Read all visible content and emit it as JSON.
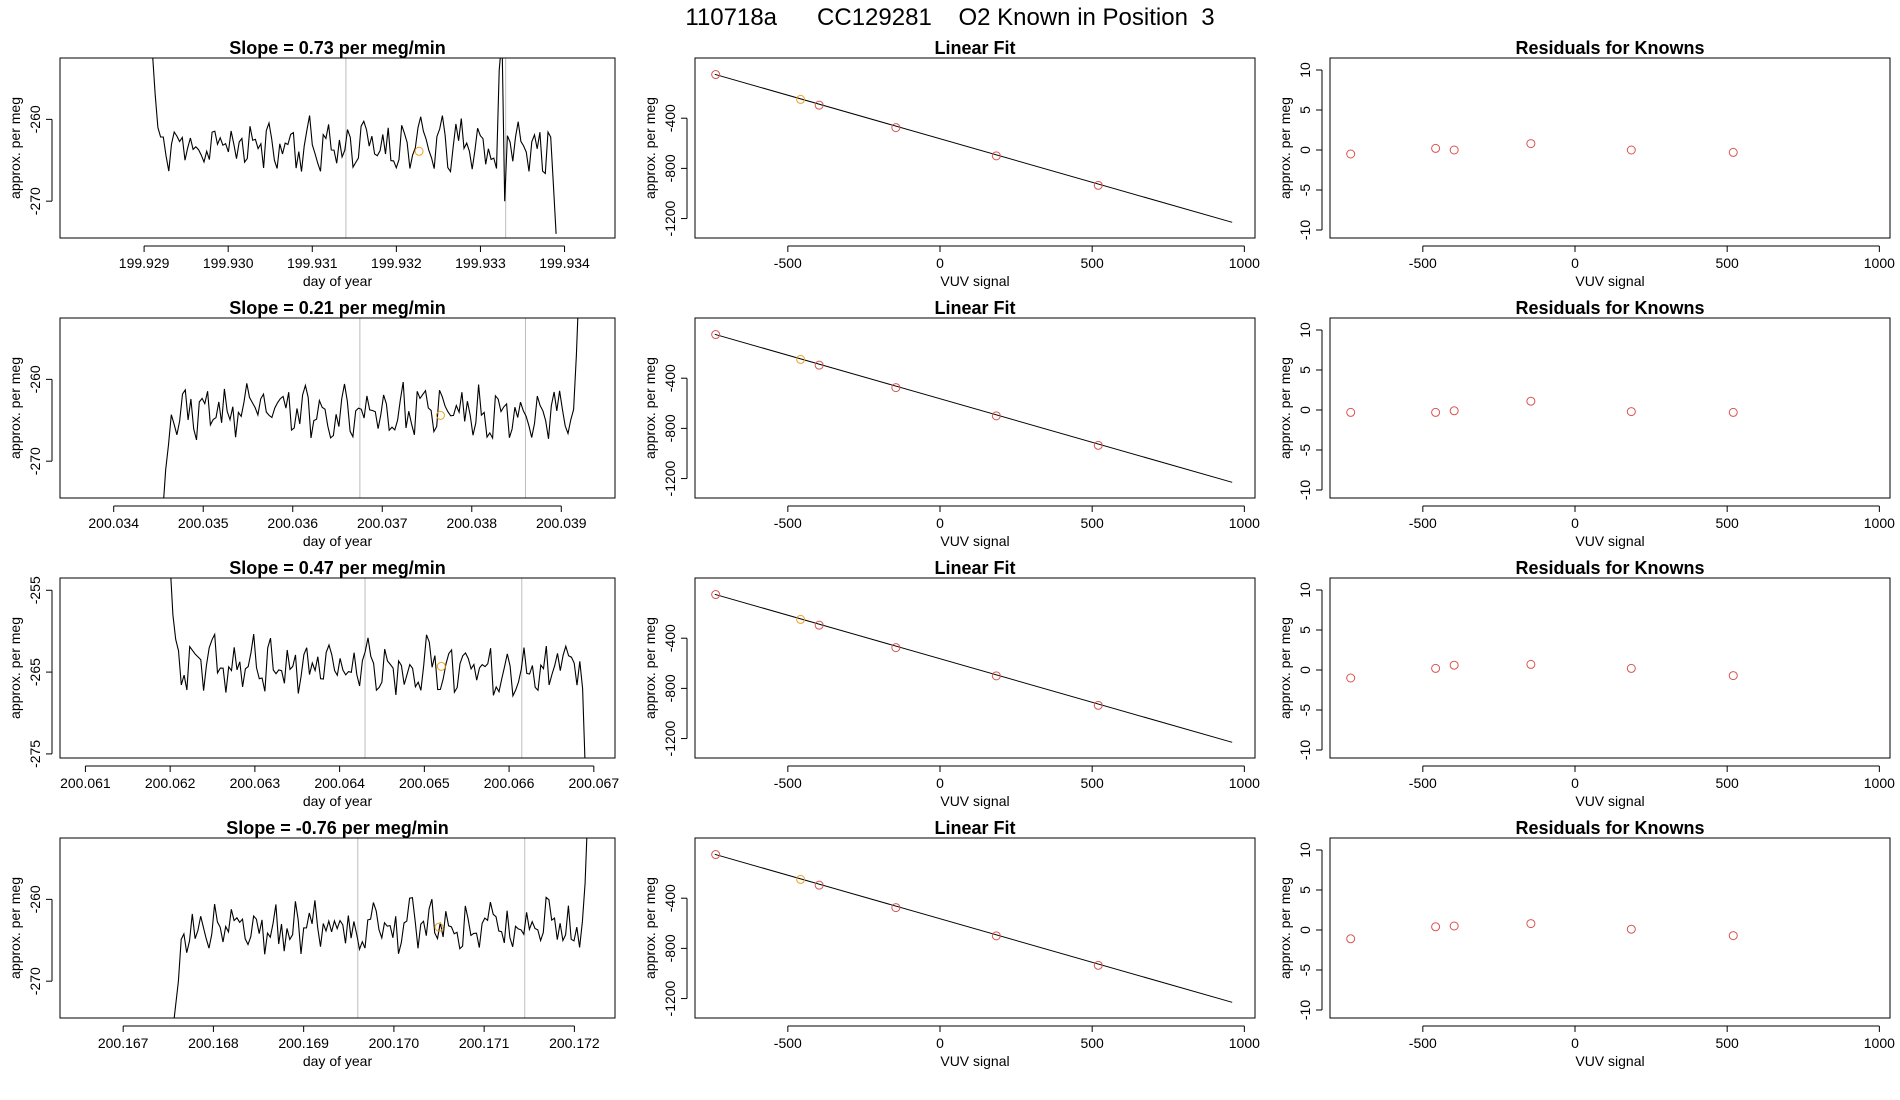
{
  "figure": {
    "title": "110718a      CC129281    O2 Known in Position  3"
  },
  "colors": {
    "line": "#000000",
    "frame": "#000000",
    "vertical_marker": "#bdbdbd",
    "highlight_point": "#f0a020",
    "point": "#d9534f"
  },
  "chart_data": [
    {
      "type": "line",
      "panel": "timeseries",
      "row": 1,
      "title": "Slope =  0.73  per meg/min",
      "xlabel": "day of year",
      "ylabel": "approx. per meg",
      "xlim": [
        199.928,
        199.9346
      ],
      "ylim": [
        -274.5,
        -252.5
      ],
      "xticks": [
        199.929,
        199.93,
        199.931,
        199.932,
        199.933,
        199.934
      ],
      "xtick_labels": [
        "199.929",
        "199.930",
        "199.931",
        "199.932",
        "199.933",
        "199.934"
      ],
      "yticks": [
        -260,
        -270
      ],
      "ytick_labels": [
        "-260",
        "-270"
      ],
      "vlines": [
        199.9314,
        199.9333
      ],
      "start_day": 199.9291,
      "end_day": 199.9339,
      "mean_value": -263.2,
      "noise_amp": 2.4,
      "seed": 11,
      "lead_in": [
        -252,
        -257,
        -261
      ],
      "lead_out": [
        -268,
        -274
      ],
      "spike_at": 0.85,
      "spike_values": [
        -266,
        -254,
        -250,
        -270,
        -262
      ],
      "highlight": {
        "x": 199.93227,
        "y": -263.9
      }
    },
    {
      "type": "scatter",
      "panel": "fit",
      "row": 1,
      "title": "Linear Fit",
      "xlabel": "VUV signal",
      "ylabel": "approx. per meg",
      "xlim": [
        -805,
        1035
      ],
      "ylim": [
        -1355,
        80
      ],
      "xticks": [
        -500,
        0,
        500,
        1000
      ],
      "xtick_labels": [
        "-500",
        "0",
        "500",
        "1000"
      ],
      "yticks": [
        -400,
        -800,
        -1200
      ],
      "ytick_labels": [
        "-400",
        "-800",
        "-1200"
      ],
      "fit_line": {
        "x": [
          -740,
          960
        ],
        "y": [
          -50,
          -1230
        ]
      },
      "points": [
        {
          "x": -737,
          "y": -52,
          "highlight": false
        },
        {
          "x": -458,
          "y": -250,
          "highlight": true
        },
        {
          "x": -397,
          "y": -296,
          "highlight": false
        },
        {
          "x": -145,
          "y": -475,
          "highlight": false
        },
        {
          "x": 185,
          "y": -700,
          "highlight": false
        },
        {
          "x": 520,
          "y": -935,
          "highlight": false
        }
      ]
    },
    {
      "type": "scatter",
      "panel": "residuals",
      "row": 1,
      "title": "Residuals for Knowns",
      "xlabel": "VUV signal",
      "ylabel": "approx. per meg",
      "xlim": [
        -805,
        1035
      ],
      "ylim": [
        -11,
        11.5
      ],
      "xticks": [
        -500,
        0,
        500,
        1000
      ],
      "xtick_labels": [
        "-500",
        "0",
        "500",
        "1000"
      ],
      "yticks": [
        10,
        5,
        0,
        -5,
        -10
      ],
      "ytick_labels": [
        "10",
        "5",
        "0",
        "-5",
        "-10"
      ],
      "points": [
        {
          "x": -737,
          "y": -0.5
        },
        {
          "x": -458,
          "y": 0.2
        },
        {
          "x": -397,
          "y": 0.0
        },
        {
          "x": -145,
          "y": 0.8
        },
        {
          "x": 185,
          "y": 0.0
        },
        {
          "x": 520,
          "y": -0.3
        }
      ]
    },
    {
      "type": "line",
      "panel": "timeseries",
      "row": 2,
      "title": "Slope =  0.21  per meg/min",
      "xlabel": "day of year",
      "ylabel": "approx. per meg",
      "xlim": [
        200.0334,
        200.0396
      ],
      "ylim": [
        -274.5,
        -252.5
      ],
      "xticks": [
        200.034,
        200.035,
        200.036,
        200.037,
        200.038,
        200.039
      ],
      "xtick_labels": [
        "200.034",
        "200.035",
        "200.036",
        "200.037",
        "200.038",
        "200.039"
      ],
      "yticks": [
        -260,
        -270
      ],
      "ytick_labels": [
        "-260",
        "-270"
      ],
      "vlines": [
        200.03675,
        200.0386
      ],
      "start_day": 200.03455,
      "end_day": 200.0392,
      "mean_value": -264.0,
      "noise_amp": 2.4,
      "seed": 23,
      "lead_in": [
        -276,
        -271,
        -268
      ],
      "lead_out": [
        -257,
        -248
      ],
      "spike_at": -1,
      "spike_values": [],
      "highlight": {
        "x": 200.03765,
        "y": -264.4
      }
    },
    {
      "type": "scatter",
      "panel": "fit",
      "row": 2,
      "title": "Linear Fit",
      "xlabel": "VUV signal",
      "ylabel": "approx. per meg",
      "xlim": [
        -805,
        1035
      ],
      "ylim": [
        -1355,
        80
      ],
      "xticks": [
        -500,
        0,
        500,
        1000
      ],
      "xtick_labels": [
        "-500",
        "0",
        "500",
        "1000"
      ],
      "yticks": [
        -400,
        -800,
        -1200
      ],
      "ytick_labels": [
        "-400",
        "-800",
        "-1200"
      ],
      "fit_line": {
        "x": [
          -740,
          960
        ],
        "y": [
          -50,
          -1230
        ]
      },
      "points": [
        {
          "x": -737,
          "y": -52,
          "highlight": false
        },
        {
          "x": -458,
          "y": -250,
          "highlight": true
        },
        {
          "x": -397,
          "y": -296,
          "highlight": false
        },
        {
          "x": -145,
          "y": -475,
          "highlight": false
        },
        {
          "x": 185,
          "y": -700,
          "highlight": false
        },
        {
          "x": 520,
          "y": -935,
          "highlight": false
        }
      ]
    },
    {
      "type": "scatter",
      "panel": "residuals",
      "row": 2,
      "title": "Residuals for Knowns",
      "xlabel": "VUV signal",
      "ylabel": "approx. per meg",
      "xlim": [
        -805,
        1035
      ],
      "ylim": [
        -11,
        11.5
      ],
      "xticks": [
        -500,
        0,
        500,
        1000
      ],
      "xtick_labels": [
        "-500",
        "0",
        "500",
        "1000"
      ],
      "yticks": [
        10,
        5,
        0,
        -5,
        -10
      ],
      "ytick_labels": [
        "10",
        "5",
        "0",
        "-5",
        "-10"
      ],
      "points": [
        {
          "x": -737,
          "y": -0.3
        },
        {
          "x": -458,
          "y": -0.3
        },
        {
          "x": -397,
          "y": -0.1
        },
        {
          "x": -145,
          "y": 1.1
        },
        {
          "x": 185,
          "y": -0.2
        },
        {
          "x": 520,
          "y": -0.3
        }
      ]
    },
    {
      "type": "line",
      "panel": "timeseries",
      "row": 3,
      "title": "Slope =  0.47  per meg/min",
      "xlabel": "day of year",
      "ylabel": "approx. per meg",
      "xlim": [
        200.0607,
        200.06725
      ],
      "ylim": [
        -275.5,
        -253.5
      ],
      "xticks": [
        200.061,
        200.062,
        200.063,
        200.064,
        200.065,
        200.066,
        200.067
      ],
      "xtick_labels": [
        "200.061",
        "200.062",
        "200.063",
        "200.064",
        "200.065",
        "200.066",
        "200.067"
      ],
      "yticks": [
        -255,
        -265,
        -275
      ],
      "ytick_labels": [
        "-255",
        "-265",
        "-275"
      ],
      "vlines": [
        200.0643,
        200.06615
      ],
      "start_day": 200.062,
      "end_day": 200.0669,
      "mean_value": -264.3,
      "noise_amp": 2.6,
      "seed": 37,
      "lead_in": [
        -252,
        -258,
        -261
      ],
      "lead_out": [
        -267,
        -277
      ],
      "spike_at": -1,
      "spike_values": [],
      "highlight": {
        "x": 200.0652,
        "y": -264.3
      }
    },
    {
      "type": "scatter",
      "panel": "fit",
      "row": 3,
      "title": "Linear Fit",
      "xlabel": "VUV signal",
      "ylabel": "approx. per meg",
      "xlim": [
        -805,
        1035
      ],
      "ylim": [
        -1355,
        80
      ],
      "xticks": [
        -500,
        0,
        500,
        1000
      ],
      "xtick_labels": [
        "-500",
        "0",
        "500",
        "1000"
      ],
      "yticks": [
        -400,
        -800,
        -1200
      ],
      "ytick_labels": [
        "-400",
        "-800",
        "-1200"
      ],
      "fit_line": {
        "x": [
          -740,
          960
        ],
        "y": [
          -50,
          -1230
        ]
      },
      "points": [
        {
          "x": -737,
          "y": -52,
          "highlight": false
        },
        {
          "x": -458,
          "y": -250,
          "highlight": true
        },
        {
          "x": -397,
          "y": -296,
          "highlight": false
        },
        {
          "x": -145,
          "y": -475,
          "highlight": false
        },
        {
          "x": 185,
          "y": -700,
          "highlight": false
        },
        {
          "x": 520,
          "y": -935,
          "highlight": false
        }
      ]
    },
    {
      "type": "scatter",
      "panel": "residuals",
      "row": 3,
      "title": "Residuals for Knowns",
      "xlabel": "VUV signal",
      "ylabel": "approx. per meg",
      "xlim": [
        -805,
        1035
      ],
      "ylim": [
        -11,
        11.5
      ],
      "xticks": [
        -500,
        0,
        500,
        1000
      ],
      "xtick_labels": [
        "-500",
        "0",
        "500",
        "1000"
      ],
      "yticks": [
        10,
        5,
        0,
        -5,
        -10
      ],
      "ytick_labels": [
        "10",
        "5",
        "0",
        "-5",
        "-10"
      ],
      "points": [
        {
          "x": -737,
          "y": -1.0
        },
        {
          "x": -458,
          "y": 0.2
        },
        {
          "x": -397,
          "y": 0.6
        },
        {
          "x": -145,
          "y": 0.7
        },
        {
          "x": 185,
          "y": 0.2
        },
        {
          "x": 520,
          "y": -0.7
        }
      ]
    },
    {
      "type": "line",
      "panel": "timeseries",
      "row": 4,
      "title": "Slope =  -0.76  per meg/min",
      "xlabel": "day of year",
      "ylabel": "approx. per meg",
      "xlim": [
        200.1663,
        200.17245
      ],
      "ylim": [
        -274.5,
        -252.5
      ],
      "xticks": [
        200.167,
        200.168,
        200.169,
        200.17,
        200.171,
        200.172
      ],
      "xtick_labels": [
        "200.167",
        "200.168",
        "200.169",
        "200.170",
        "200.171",
        "200.172"
      ],
      "yticks": [
        -260,
        -270
      ],
      "ytick_labels": [
        "-260",
        "-270"
      ],
      "vlines": [
        200.1696,
        200.17145
      ],
      "start_day": 200.16755,
      "end_day": 200.17215,
      "mean_value": -263.6,
      "noise_amp": 2.5,
      "seed": 49,
      "lead_in": [
        -276,
        -273,
        -270
      ],
      "lead_out": [
        -258,
        -249
      ],
      "spike_at": -1,
      "spike_values": [],
      "highlight": {
        "x": 200.1705,
        "y": -263.4
      }
    },
    {
      "type": "scatter",
      "panel": "fit",
      "row": 4,
      "title": "Linear Fit",
      "xlabel": "VUV signal",
      "ylabel": "approx. per meg",
      "xlim": [
        -805,
        1035
      ],
      "ylim": [
        -1355,
        80
      ],
      "xticks": [
        -500,
        0,
        500,
        1000
      ],
      "xtick_labels": [
        "-500",
        "0",
        "500",
        "1000"
      ],
      "yticks": [
        -400,
        -800,
        -1200
      ],
      "ytick_labels": [
        "-400",
        "-800",
        "-1200"
      ],
      "fit_line": {
        "x": [
          -740,
          960
        ],
        "y": [
          -50,
          -1230
        ]
      },
      "points": [
        {
          "x": -737,
          "y": -52,
          "highlight": false
        },
        {
          "x": -458,
          "y": -250,
          "highlight": true
        },
        {
          "x": -397,
          "y": -296,
          "highlight": false
        },
        {
          "x": -145,
          "y": -475,
          "highlight": false
        },
        {
          "x": 185,
          "y": -700,
          "highlight": false
        },
        {
          "x": 520,
          "y": -935,
          "highlight": false
        }
      ]
    },
    {
      "type": "scatter",
      "panel": "residuals",
      "row": 4,
      "title": "Residuals for Knowns",
      "xlabel": "VUV signal",
      "ylabel": "approx. per meg",
      "xlim": [
        -805,
        1035
      ],
      "ylim": [
        -11,
        11.5
      ],
      "xticks": [
        -500,
        0,
        500,
        1000
      ],
      "xtick_labels": [
        "-500",
        "0",
        "500",
        "1000"
      ],
      "yticks": [
        10,
        5,
        0,
        -5,
        -10
      ],
      "ytick_labels": [
        "10",
        "5",
        "0",
        "-5",
        "-10"
      ],
      "points": [
        {
          "x": -737,
          "y": -1.1
        },
        {
          "x": -458,
          "y": 0.4
        },
        {
          "x": -397,
          "y": 0.5
        },
        {
          "x": -145,
          "y": 0.8
        },
        {
          "x": 185,
          "y": 0.1
        },
        {
          "x": 520,
          "y": -0.7
        }
      ]
    }
  ]
}
